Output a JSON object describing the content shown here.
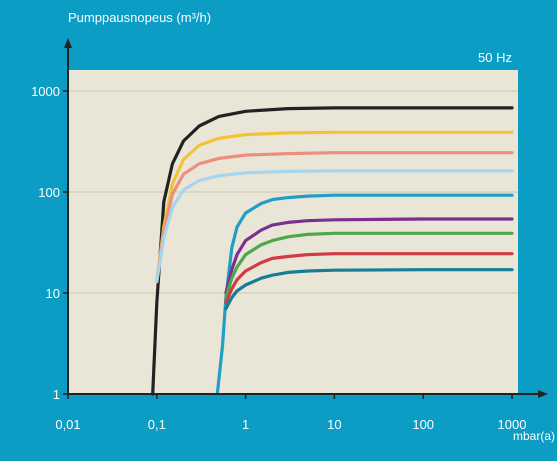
{
  "chart_data": {
    "type": "line",
    "title": "",
    "ylabel": "Pumppausnopeus (m³/h)",
    "xlabel": "mbar(a)",
    "annotation": "50 Hz",
    "xscale": "log",
    "yscale": "log",
    "xlim": [
      0.01,
      1000
    ],
    "ylim": [
      1,
      1700
    ],
    "x_ticks": [
      0.01,
      0.1,
      1,
      10,
      100,
      1000
    ],
    "x_tick_labels": [
      "0,01",
      "0,1",
      "1",
      "10",
      "100",
      "1000"
    ],
    "y_ticks": [
      1,
      10,
      100,
      1000
    ],
    "y_tick_labels": [
      "1",
      "10",
      "100",
      "1000"
    ],
    "grid": "horizontal",
    "legend": "none",
    "colors": {
      "background": "#0b9dc4",
      "plot_area": "#eae6d7",
      "gridline": "#d6d0bd",
      "axis": "#222222",
      "text": "#ffffff"
    },
    "series": [
      {
        "color": "#222222",
        "x": [
          0.09,
          0.1,
          0.12,
          0.15,
          0.2,
          0.3,
          0.5,
          1,
          3,
          10,
          100,
          1000
        ],
        "y": [
          1,
          8,
          80,
          190,
          320,
          450,
          560,
          630,
          670,
          680,
          680,
          680
        ]
      },
      {
        "color": "#f2c335",
        "x": [
          0.1,
          0.12,
          0.15,
          0.2,
          0.3,
          0.5,
          1,
          3,
          10,
          100,
          1000
        ],
        "y": [
          13,
          45,
          120,
          210,
          290,
          340,
          370,
          385,
          390,
          390,
          390
        ]
      },
      {
        "color": "#ec8f80",
        "x": [
          0.1,
          0.12,
          0.15,
          0.2,
          0.3,
          0.5,
          1,
          3,
          10,
          100,
          1000
        ],
        "y": [
          13,
          40,
          95,
          150,
          190,
          215,
          232,
          240,
          245,
          245,
          245
        ]
      },
      {
        "color": "#a9d4ee",
        "x": [
          0.1,
          0.12,
          0.15,
          0.2,
          0.3,
          0.5,
          1,
          3,
          10,
          100,
          1000
        ],
        "y": [
          13,
          35,
          70,
          105,
          130,
          145,
          155,
          160,
          162,
          162,
          162
        ]
      },
      {
        "color": "#1e9fc3",
        "x": [
          0.48,
          0.55,
          0.6,
          0.7,
          0.8,
          1,
          1.5,
          2,
          3,
          5,
          10,
          100,
          1000
        ],
        "y": [
          1,
          3,
          9,
          28,
          45,
          62,
          77,
          84,
          88,
          91,
          93,
          93,
          93
        ]
      },
      {
        "color": "#7d2f8f",
        "x": [
          0.6,
          0.7,
          0.8,
          1,
          1.5,
          2,
          3,
          5,
          10,
          100,
          1000
        ],
        "y": [
          10,
          17,
          24,
          33,
          42,
          47,
          50,
          52,
          53,
          54,
          54
        ]
      },
      {
        "color": "#4ea84b",
        "x": [
          0.6,
          0.7,
          0.8,
          1,
          1.5,
          2,
          3,
          5,
          10,
          100,
          1000
        ],
        "y": [
          9,
          14,
          18,
          24,
          30,
          33,
          36,
          38,
          39,
          39,
          39
        ]
      },
      {
        "color": "#d23a45",
        "x": [
          0.6,
          0.7,
          0.8,
          1,
          1.5,
          2,
          3,
          5,
          10,
          100,
          1000
        ],
        "y": [
          8,
          11,
          13.5,
          16.5,
          20,
          22,
          23,
          24,
          24.5,
          24.5,
          24.5
        ]
      },
      {
        "color": "#137e96",
        "x": [
          0.6,
          0.7,
          0.8,
          1,
          1.5,
          2,
          3,
          5,
          10,
          100,
          1000
        ],
        "y": [
          7,
          9,
          10.5,
          12,
          14,
          15,
          16,
          16.5,
          16.8,
          17,
          17
        ]
      }
    ]
  }
}
